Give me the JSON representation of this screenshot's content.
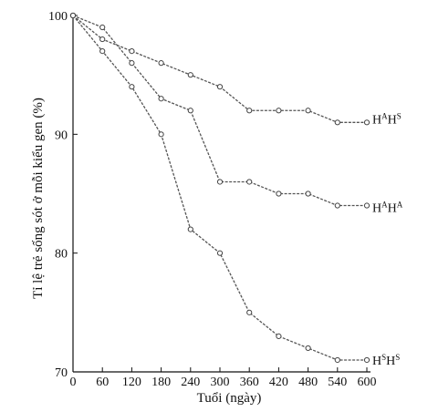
{
  "chart_data": {
    "type": "line",
    "xlabel": "Tuổi (ngày)",
    "ylabel": "Tỉ lệ trẻ sống sót ở mỗi kiểu gen (%)",
    "xlim": [
      0,
      600
    ],
    "ylim": [
      70,
      100
    ],
    "x_ticks": [
      0,
      60,
      120,
      180,
      240,
      300,
      360,
      420,
      480,
      540,
      600
    ],
    "y_ticks": [
      70,
      80,
      90,
      100
    ],
    "grid": false,
    "legend": "inline labels at right end of each line",
    "series": [
      {
        "name": "HᴬHˢ",
        "label_base": "H",
        "label_sup1": "A",
        "label_mid": "H",
        "label_sup2": "S",
        "x": [
          0,
          60,
          120,
          180,
          240,
          300,
          360,
          420,
          480,
          540,
          600
        ],
        "y": [
          100,
          98.0,
          97.0,
          96.0,
          95.0,
          94.0,
          92.0,
          92.0,
          92.0,
          91.0,
          91.0
        ]
      },
      {
        "name": "HᴬHᴬ",
        "label_base": "H",
        "label_sup1": "A",
        "label_mid": "H",
        "label_sup2": "A",
        "x": [
          0,
          60,
          120,
          180,
          240,
          300,
          360,
          420,
          480,
          540,
          600
        ],
        "y": [
          100,
          99.0,
          96.0,
          93.0,
          92.0,
          86.0,
          86.0,
          85.0,
          85.0,
          84.0,
          84.0
        ]
      },
      {
        "name": "HˢHˢ",
        "label_base": "H",
        "label_sup1": "S",
        "label_mid": "H",
        "label_sup2": "S",
        "x": [
          0,
          60,
          120,
          180,
          240,
          300,
          360,
          420,
          480,
          540,
          600
        ],
        "y": [
          100,
          97.0,
          94.0,
          90.0,
          82.0,
          80.0,
          75.0,
          73.0,
          72.0,
          71.0,
          71.0
        ]
      }
    ]
  },
  "colors": {
    "line": "#555555",
    "axis": "#111111",
    "background": "#ffffff"
  }
}
